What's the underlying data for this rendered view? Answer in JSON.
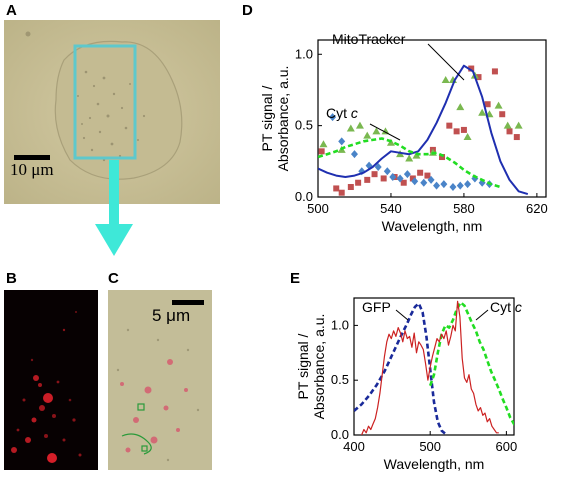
{
  "panels": {
    "A": {
      "letter": "A",
      "scale_label": "10 μm"
    },
    "B": {
      "letter": "B"
    },
    "C": {
      "letter": "C",
      "scale_label": "5 μm"
    },
    "D": {
      "letter": "D"
    },
    "E": {
      "letter": "E"
    }
  },
  "colors": {
    "roi_box": "#5ec8cc",
    "arrow": "#3ee8d8",
    "mitotracker": "#1f2fb0",
    "cyt_c": "#22dd22",
    "gfp": "#1a2a9a",
    "pt_signal_E": "#cc2222",
    "red_squares": "#c05050",
    "green_triangles": "#7ab850",
    "blue_diamonds": "#4a84c8"
  },
  "chart_data": [
    {
      "panel": "D",
      "type": "line",
      "xlabel": "Wavelength, nm",
      "ylabel": "PT signal / Absorbance, a.u.",
      "xlim": [
        500,
        625
      ],
      "ylim": [
        0,
        1.1
      ],
      "xticks": [
        500,
        540,
        580,
        620
      ],
      "yticks": [
        0.0,
        0.5,
        1.0
      ],
      "ytick_labels": [
        "0.0",
        "0.5",
        "1.0"
      ],
      "annotations": [
        {
          "text": "MitoTracker",
          "series": "mitotracker"
        },
        {
          "text": "Cyt ",
          "italic": "c",
          "series": "cyt_c"
        }
      ],
      "series": [
        {
          "key": "mitotracker",
          "style": "solid",
          "x": [
            500,
            505,
            510,
            515,
            520,
            525,
            530,
            535,
            540,
            545,
            550,
            555,
            560,
            565,
            570,
            575,
            580,
            585,
            590,
            595,
            600,
            605,
            610,
            615
          ],
          "y": [
            0.2,
            0.17,
            0.15,
            0.14,
            0.15,
            0.17,
            0.21,
            0.27,
            0.32,
            0.31,
            0.3,
            0.32,
            0.4,
            0.52,
            0.66,
            0.82,
            0.92,
            0.88,
            0.7,
            0.45,
            0.25,
            0.12,
            0.04,
            0.02
          ]
        },
        {
          "key": "cyt_c",
          "style": "dashed",
          "x": [
            500,
            505,
            510,
            515,
            520,
            525,
            530,
            535,
            540,
            545,
            550,
            555,
            560,
            565,
            570,
            575,
            580,
            585,
            590,
            595,
            600
          ],
          "y": [
            0.28,
            0.3,
            0.32,
            0.35,
            0.37,
            0.39,
            0.4,
            0.41,
            0.39,
            0.36,
            0.32,
            0.3,
            0.3,
            0.31,
            0.28,
            0.24,
            0.19,
            0.15,
            0.12,
            0.09,
            0.07
          ]
        }
      ],
      "scatter": [
        {
          "key": "red_squares",
          "marker": "square",
          "points": [
            [
              502,
              0.32
            ],
            [
              510,
              0.06
            ],
            [
              513,
              0.03
            ],
            [
              518,
              0.07
            ],
            [
              522,
              0.1
            ],
            [
              527,
              0.12
            ],
            [
              531,
              0.16
            ],
            [
              536,
              0.13
            ],
            [
              542,
              0.14
            ],
            [
              547,
              0.1
            ],
            [
              552,
              0.13
            ],
            [
              556,
              0.17
            ],
            [
              560,
              0.15
            ],
            [
              563,
              0.33
            ],
            [
              568,
              0.28
            ],
            [
              572,
              0.5
            ],
            [
              576,
              0.46
            ],
            [
              580,
              0.47
            ],
            [
              584,
              0.9
            ],
            [
              588,
              0.84
            ],
            [
              593,
              0.65
            ],
            [
              597,
              0.88
            ],
            [
              601,
              0.58
            ],
            [
              605,
              0.46
            ],
            [
              609,
              0.42
            ]
          ]
        },
        {
          "key": "green_triangles",
          "marker": "triangle",
          "points": [
            [
              503,
              0.37
            ],
            [
              513,
              0.33
            ],
            [
              518,
              0.48
            ],
            [
              523,
              0.5
            ],
            [
              527,
              0.43
            ],
            [
              532,
              0.46
            ],
            [
              537,
              0.46
            ],
            [
              540,
              0.38
            ],
            [
              545,
              0.3
            ],
            [
              550,
              0.27
            ],
            [
              554,
              0.29
            ],
            [
              563,
              0.31
            ],
            [
              570,
              0.82
            ],
            [
              574,
              0.82
            ],
            [
              578,
              0.63
            ],
            [
              582,
              0.42
            ],
            [
              586,
              0.85
            ],
            [
              590,
              0.59
            ],
            [
              594,
              0.58
            ],
            [
              599,
              0.64
            ],
            [
              604,
              0.5
            ],
            [
              610,
              0.5
            ]
          ]
        },
        {
          "key": "blue_diamonds",
          "marker": "diamond",
          "points": [
            [
              508,
              0.56
            ],
            [
              513,
              0.39
            ],
            [
              520,
              0.3
            ],
            [
              524,
              0.18
            ],
            [
              528,
              0.22
            ],
            [
              533,
              0.21
            ],
            [
              538,
              0.18
            ],
            [
              541,
              0.14
            ],
            [
              545,
              0.13
            ],
            [
              549,
              0.16
            ],
            [
              553,
              0.11
            ],
            [
              558,
              0.1
            ],
            [
              562,
              0.12
            ],
            [
              565,
              0.08
            ],
            [
              569,
              0.09
            ],
            [
              574,
              0.07
            ],
            [
              578,
              0.08
            ],
            [
              582,
              0.09
            ],
            [
              586,
              0.13
            ],
            [
              590,
              0.1
            ],
            [
              594,
              0.09
            ]
          ]
        }
      ]
    },
    {
      "panel": "E",
      "type": "line",
      "xlabel": "Wavelength, nm",
      "ylabel": "PT signal / Absorbance, a.u.",
      "xlim": [
        400,
        610
      ],
      "ylim": [
        0,
        1.25
      ],
      "xticks": [
        400,
        500,
        600
      ],
      "yticks": [
        0.0,
        0.5,
        1.0
      ],
      "ytick_labels": [
        "0.0",
        "0.5",
        "1.0"
      ],
      "annotations": [
        {
          "text": "GFP",
          "series": "gfp"
        },
        {
          "text": "Cyt ",
          "italic": "c",
          "series": "cyt_c"
        }
      ],
      "series": [
        {
          "key": "gfp",
          "style": "dashed",
          "x": [
            400,
            410,
            420,
            430,
            440,
            450,
            460,
            470,
            475,
            480,
            485,
            490,
            495,
            500,
            505,
            510,
            515,
            520
          ],
          "y": [
            0.22,
            0.28,
            0.36,
            0.46,
            0.58,
            0.73,
            0.88,
            1.02,
            1.1,
            1.17,
            1.2,
            1.12,
            0.9,
            0.6,
            0.3,
            0.12,
            0.04,
            0.01
          ]
        },
        {
          "key": "cyt_c",
          "style": "dashed",
          "x": [
            500,
            505,
            510,
            515,
            520,
            525,
            530,
            535,
            540,
            545,
            550,
            555,
            560,
            565,
            570,
            575,
            580,
            585,
            590,
            595,
            600,
            605,
            610,
            615
          ],
          "y": [
            0.45,
            0.55,
            0.75,
            0.92,
            1.0,
            0.98,
            1.05,
            1.15,
            1.21,
            1.18,
            1.1,
            1.02,
            0.95,
            0.85,
            0.78,
            0.68,
            0.58,
            0.5,
            0.42,
            0.33,
            0.25,
            0.16,
            0.1,
            0.05
          ]
        },
        {
          "key": "pt_signal_E",
          "style": "solid",
          "x": [
            410,
            413,
            416,
            419,
            422,
            425,
            428,
            431,
            434,
            437,
            440,
            443,
            446,
            449,
            452,
            455,
            458,
            461,
            464,
            467,
            470,
            473,
            476,
            479,
            482,
            485,
            488,
            491,
            494,
            497,
            500,
            503,
            506,
            509,
            512,
            515,
            518,
            521,
            524,
            527,
            530,
            533,
            536,
            539,
            542,
            545,
            548,
            551,
            554,
            557,
            560,
            563,
            566,
            569,
            572,
            575,
            578,
            581,
            584,
            587,
            590
          ],
          "y": [
            0.0,
            0.05,
            0.02,
            0.08,
            0.05,
            0.1,
            0.15,
            0.25,
            0.38,
            0.55,
            0.72,
            0.85,
            0.92,
            0.88,
            0.95,
            0.9,
            0.98,
            0.93,
            0.85,
            0.95,
            0.88,
            0.9,
            0.8,
            0.93,
            0.75,
            0.85,
            0.82,
            0.78,
            0.65,
            0.5,
            0.62,
            0.72,
            0.8,
            0.88,
            0.85,
            0.92,
            0.88,
            0.95,
            0.82,
            0.9,
            1.0,
            0.95,
            1.22,
            1.08,
            0.7,
            0.52,
            0.48,
            0.55,
            0.42,
            0.38,
            0.28,
            0.22,
            0.25,
            0.18,
            0.2,
            0.12,
            0.15,
            0.08,
            0.05,
            0.02,
            0.02
          ]
        }
      ]
    }
  ]
}
